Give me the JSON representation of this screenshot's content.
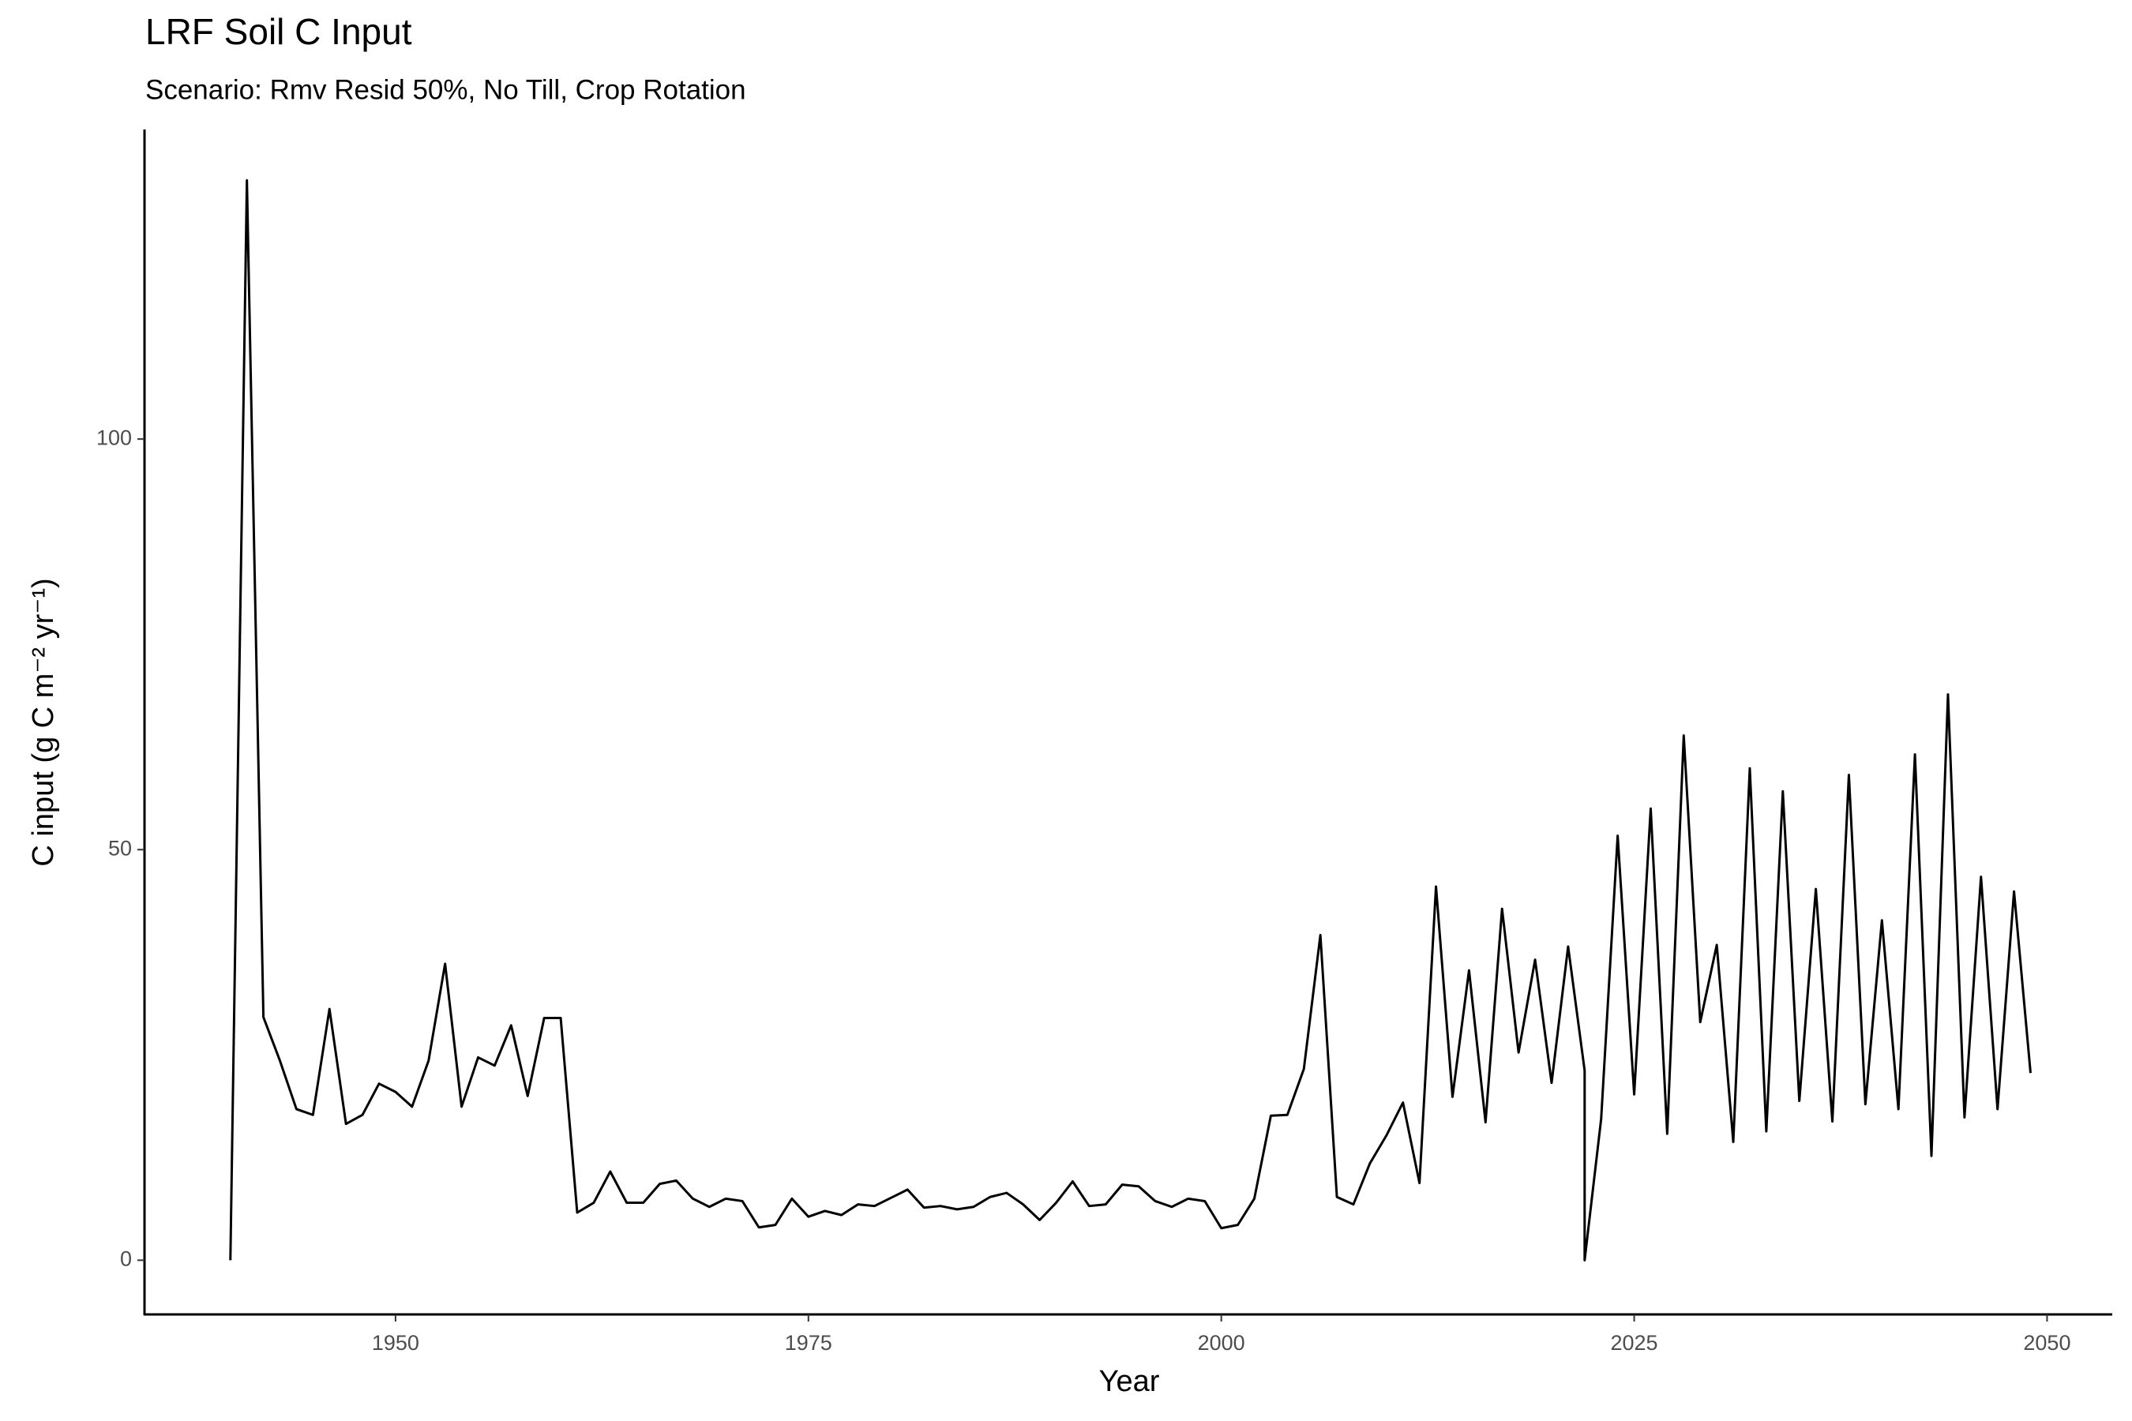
{
  "chart_data": {
    "type": "line",
    "title": "LRF Soil C Input",
    "subtitle": "Scenario: Rmv Resid 50%, No Till, Crop Rotation",
    "xlabel": "Year",
    "ylabel": "C input (g C m⁻² yr⁻¹)",
    "x": [
      1940,
      1941,
      1942,
      1943,
      1944,
      1945,
      1946,
      1947,
      1948,
      1949,
      1950,
      1951,
      1952,
      1953,
      1954,
      1955,
      1956,
      1957,
      1958,
      1959,
      1960,
      1961,
      1962,
      1963,
      1964,
      1965,
      1966,
      1967,
      1968,
      1969,
      1970,
      1971,
      1972,
      1973,
      1974,
      1975,
      1976,
      1977,
      1978,
      1979,
      1980,
      1981,
      1982,
      1983,
      1984,
      1985,
      1986,
      1987,
      1988,
      1989,
      1990,
      1991,
      1992,
      1993,
      1994,
      1995,
      1996,
      1997,
      1998,
      1999,
      2000,
      2001,
      2002,
      2003,
      2004,
      2005,
      2006,
      2007,
      2008,
      2009,
      2010,
      2011,
      2012,
      2013,
      2014,
      2015,
      2016,
      2017,
      2018,
      2019,
      2020,
      2021,
      2022,
      2022,
      2023,
      2024,
      2025,
      2026,
      2027,
      2028,
      2029,
      2030,
      2031,
      2032,
      2033,
      2034,
      2035,
      2036,
      2037,
      2038,
      2039,
      2040,
      2041,
      2042,
      2043,
      2044,
      2045,
      2046,
      2047,
      2048,
      2049
    ],
    "series": [
      {
        "color": "#000000",
        "values": [
          0,
          131.5,
          29.6,
          24.3,
          18.4,
          17.7,
          30.6,
          16.6,
          17.7,
          21.5,
          20.5,
          18.7,
          24.3,
          36.1,
          18.7,
          24.7,
          23.7,
          28.6,
          20.0,
          29.5,
          29.5,
          5.8,
          7.0,
          10.8,
          7.0,
          7.0,
          9.3,
          9.7,
          7.5,
          6.5,
          7.5,
          7.2,
          4.0,
          4.3,
          7.5,
          5.3,
          6.0,
          5.5,
          6.8,
          6.6,
          7.6,
          8.6,
          6.4,
          6.6,
          6.2,
          6.5,
          7.7,
          8.2,
          6.8,
          4.9,
          7.0,
          9.6,
          6.6,
          6.8,
          9.2,
          9.0,
          7.2,
          6.5,
          7.5,
          7.2,
          3.9,
          4.3,
          7.5,
          17.6,
          17.7,
          23.3,
          39.6,
          7.7,
          6.8,
          11.8,
          15.2,
          19.2,
          9.4,
          45.5,
          19.9,
          35.3,
          16.8,
          42.8,
          25.3,
          36.6,
          21.6,
          38.2,
          23.1,
          0,
          17.2,
          51.7,
          20.2,
          55.0,
          15.4,
          63.9,
          29.0,
          38.4,
          14.4,
          59.9,
          15.7,
          57.1,
          19.4,
          45.2,
          16.9,
          59.1,
          19.0,
          41.4,
          18.4,
          61.6,
          12.7,
          68.9,
          17.4,
          46.7,
          18.4,
          44.9,
          22.8
        ]
      }
    ],
    "xlim": [
      1934.8,
      2053.9
    ],
    "ylim": [
      -6.6,
      137.7
    ],
    "xticks": [
      1950,
      1975,
      2000,
      2025,
      2050
    ],
    "yticks": [
      0,
      50,
      100
    ],
    "grid": false
  }
}
